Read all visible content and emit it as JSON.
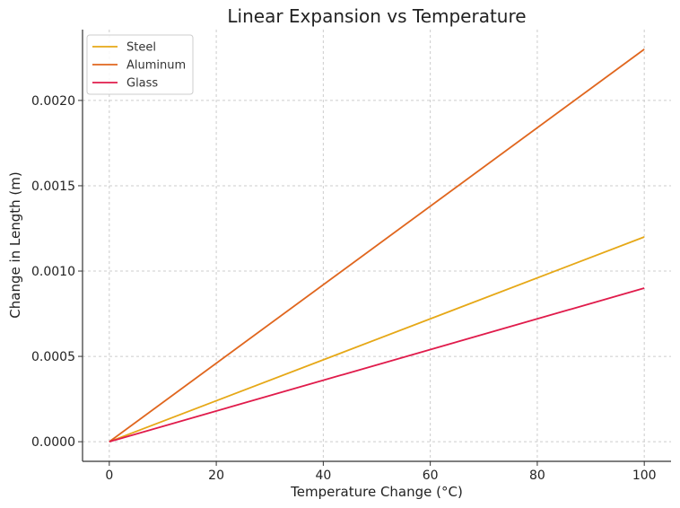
{
  "chart_data": {
    "type": "line",
    "title": "Linear Expansion vs Temperature",
    "xlabel": "Temperature Change (°C)",
    "ylabel": "Change in Length (m)",
    "x": [
      0,
      100
    ],
    "series": [
      {
        "name": "Steel",
        "color": "#E6A817",
        "values": [
          0.0,
          0.0012
        ]
      },
      {
        "name": "Aluminum",
        "color": "#E0661E",
        "values": [
          0.0,
          0.0023
        ]
      },
      {
        "name": "Glass",
        "color": "#E01B4B",
        "values": [
          0.0,
          0.0009
        ]
      }
    ],
    "xlim": [
      -5,
      105
    ],
    "ylim": [
      -0.000115,
      0.002415
    ],
    "xticks": [
      0,
      20,
      40,
      60,
      80,
      100
    ],
    "xtick_labels": [
      "0",
      "20",
      "40",
      "60",
      "80",
      "100"
    ],
    "yticks": [
      0.0,
      0.0005,
      0.001,
      0.0015,
      0.002
    ],
    "ytick_labels": [
      "0.0000",
      "0.0005",
      "0.0010",
      "0.0015",
      "0.0020"
    ],
    "grid": true,
    "legend_position": "top-left"
  }
}
